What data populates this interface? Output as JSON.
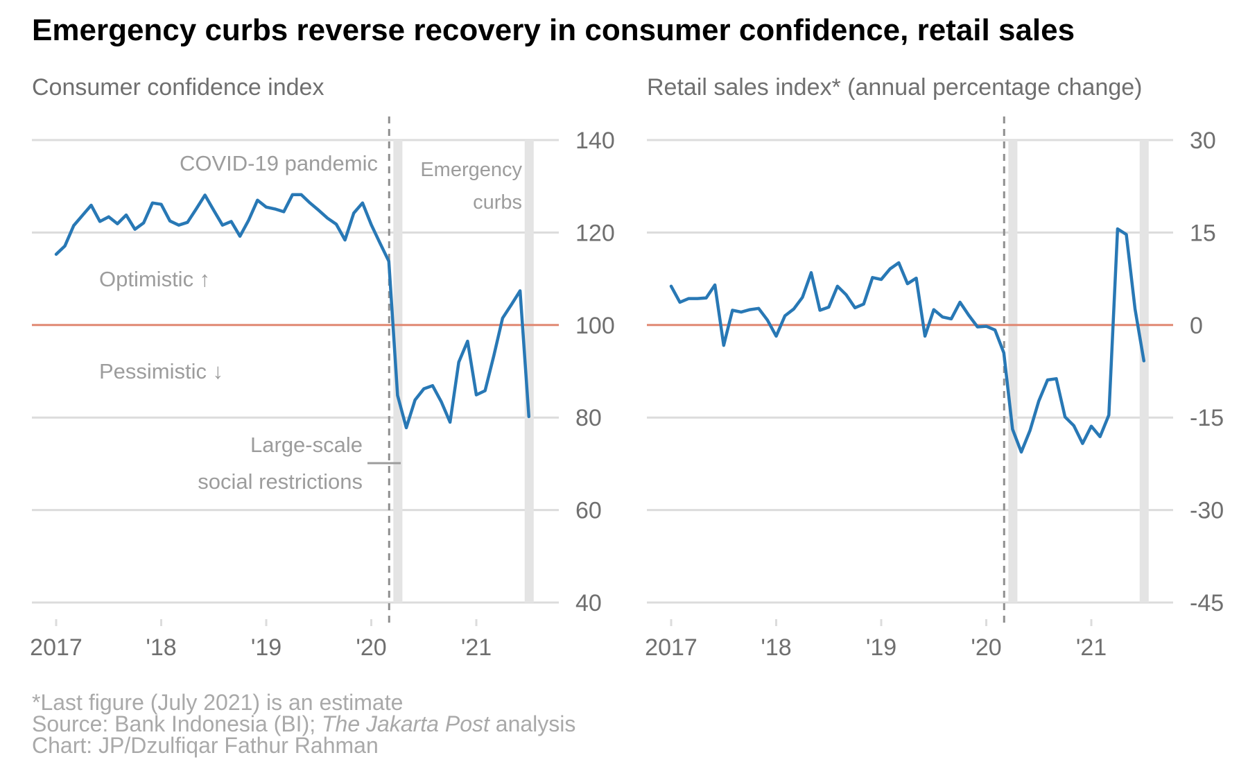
{
  "title": "Emergency curbs reverse recovery in consumer confidence, retail sales",
  "footer": {
    "note": "*Last figure (July 2021) is an estimate",
    "source_prefix": "Source: Bank Indonesia (BI); ",
    "source_italic": "The Jakarta Post",
    "source_suffix": " analysis",
    "credit": "Chart: JP/Dzulfiqar Fathur Rahman"
  },
  "colors": {
    "line": "#2878b5",
    "baseline": "#e08872",
    "grid": "#dcdcdc",
    "band": "#e4e4e4",
    "marker": "#8f8f8f"
  },
  "chart_data": [
    {
      "type": "line",
      "title": "Consumer confidence index",
      "x_ticks": [
        {
          "t": 2017.0,
          "label": "2017"
        },
        {
          "t": 2018.0,
          "label": "'18"
        },
        {
          "t": 2019.0,
          "label": "'19"
        },
        {
          "t": 2020.0,
          "label": "'20"
        },
        {
          "t": 2021.0,
          "label": "'21"
        }
      ],
      "y_ticks": [
        {
          "v": 140,
          "label": "140"
        },
        {
          "v": 120,
          "label": "120"
        },
        {
          "v": 100,
          "label": "100"
        },
        {
          "v": 80,
          "label": "80"
        },
        {
          "v": 60,
          "label": "60"
        },
        {
          "v": 40,
          "label": "40"
        }
      ],
      "xlim": [
        2016.78,
        2021.78
      ],
      "ylim": [
        40,
        140
      ],
      "baseline": 100,
      "grid": true,
      "pandemic_marker": 2020.17,
      "emergency_curbs": [
        2020.25,
        2021.5
      ],
      "x": [
        "2017-01",
        "2017-02",
        "2017-03",
        "2017-04",
        "2017-05",
        "2017-06",
        "2017-07",
        "2017-08",
        "2017-09",
        "2017-10",
        "2017-11",
        "2017-12",
        "2018-01",
        "2018-02",
        "2018-03",
        "2018-04",
        "2018-05",
        "2018-06",
        "2018-07",
        "2018-08",
        "2018-09",
        "2018-10",
        "2018-11",
        "2018-12",
        "2019-01",
        "2019-02",
        "2019-03",
        "2019-04",
        "2019-05",
        "2019-06",
        "2019-07",
        "2019-08",
        "2019-09",
        "2019-10",
        "2019-11",
        "2019-12",
        "2020-01",
        "2020-02",
        "2020-03",
        "2020-04",
        "2020-05",
        "2020-06",
        "2020-07",
        "2020-08",
        "2020-09",
        "2020-10",
        "2020-11",
        "2020-12",
        "2021-01",
        "2021-02",
        "2021-03",
        "2021-04",
        "2021-05",
        "2021-06",
        "2021-07"
      ],
      "series": [
        {
          "values": [
            115.3,
            117.1,
            121.5,
            123.7,
            125.9,
            122.4,
            123.4,
            121.9,
            123.8,
            120.7,
            122.1,
            126.4,
            126.1,
            122.5,
            121.6,
            122.2,
            125.1,
            128.1,
            124.8,
            121.6,
            122.4,
            119.2,
            122.7,
            127.0,
            125.5,
            125.1,
            124.5,
            128.2,
            128.2,
            126.4,
            124.8,
            123.1,
            121.8,
            118.4,
            124.2,
            126.4,
            121.7,
            117.7,
            113.8,
            84.8,
            77.8,
            83.8,
            86.2,
            86.9,
            83.4,
            79.0,
            92.0,
            96.5,
            84.9,
            85.8,
            93.4,
            101.5,
            104.4,
            107.4,
            80.2
          ]
        }
      ],
      "annotations": [
        {
          "lines": [
            "COVID-19 pandemic"
          ]
        },
        {
          "lines": [
            "Emergency",
            "curbs"
          ]
        },
        {
          "lines": [
            "Optimistic ↑"
          ]
        },
        {
          "lines": [
            "Pessimistic ↓"
          ]
        },
        {
          "lines": [
            "Large-scale",
            "social restrictions"
          ]
        }
      ]
    },
    {
      "type": "line",
      "title": "Retail sales index* (annual percentage change)",
      "x_ticks": [
        {
          "t": 2017.0,
          "label": "2017"
        },
        {
          "t": 2018.0,
          "label": "'18"
        },
        {
          "t": 2019.0,
          "label": "'19"
        },
        {
          "t": 2020.0,
          "label": "'20"
        },
        {
          "t": 2021.0,
          "label": "'21"
        }
      ],
      "y_ticks": [
        {
          "v": 30,
          "label": "30"
        },
        {
          "v": 15,
          "label": "15"
        },
        {
          "v": 0,
          "label": "0"
        },
        {
          "v": -15,
          "label": "-15"
        },
        {
          "v": -30,
          "label": "-30"
        },
        {
          "v": -45,
          "label": "-45"
        }
      ],
      "xlim": [
        2016.78,
        2021.78
      ],
      "ylim": [
        -45,
        30
      ],
      "baseline": 0,
      "grid": true,
      "pandemic_marker": 2020.17,
      "emergency_curbs": [
        2020.25,
        2021.5
      ],
      "x": [
        "2017-01",
        "2017-02",
        "2017-03",
        "2017-04",
        "2017-05",
        "2017-06",
        "2017-07",
        "2017-08",
        "2017-09",
        "2017-10",
        "2017-11",
        "2017-12",
        "2018-01",
        "2018-02",
        "2018-03",
        "2018-04",
        "2018-05",
        "2018-06",
        "2018-07",
        "2018-08",
        "2018-09",
        "2018-10",
        "2018-11",
        "2018-12",
        "2019-01",
        "2019-02",
        "2019-03",
        "2019-04",
        "2019-05",
        "2019-06",
        "2019-07",
        "2019-08",
        "2019-09",
        "2019-10",
        "2019-11",
        "2019-12",
        "2020-01",
        "2020-02",
        "2020-03",
        "2020-04",
        "2020-05",
        "2020-06",
        "2020-07",
        "2020-08",
        "2020-09",
        "2020-10",
        "2020-11",
        "2020-12",
        "2021-01",
        "2021-02",
        "2021-03",
        "2021-04",
        "2021-05",
        "2021-06",
        "2021-07"
      ],
      "series": [
        {
          "values": [
            6.3,
            3.7,
            4.3,
            4.3,
            4.4,
            6.5,
            -3.3,
            2.4,
            2.1,
            2.5,
            2.7,
            0.8,
            -1.8,
            1.5,
            2.6,
            4.5,
            8.5,
            2.4,
            2.9,
            6.3,
            4.9,
            2.8,
            3.4,
            7.7,
            7.4,
            9.1,
            10.1,
            6.7,
            7.6,
            -1.8,
            2.5,
            1.3,
            1.0,
            3.7,
            1.6,
            -0.3,
            -0.2,
            -0.8,
            -4.5,
            -16.9,
            -20.6,
            -17.1,
            -12.3,
            -8.9,
            -8.7,
            -14.9,
            -16.3,
            -19.2,
            -16.4,
            -18.1,
            -14.6,
            15.6,
            14.7,
            2.6,
            -5.8
          ]
        }
      ]
    }
  ]
}
